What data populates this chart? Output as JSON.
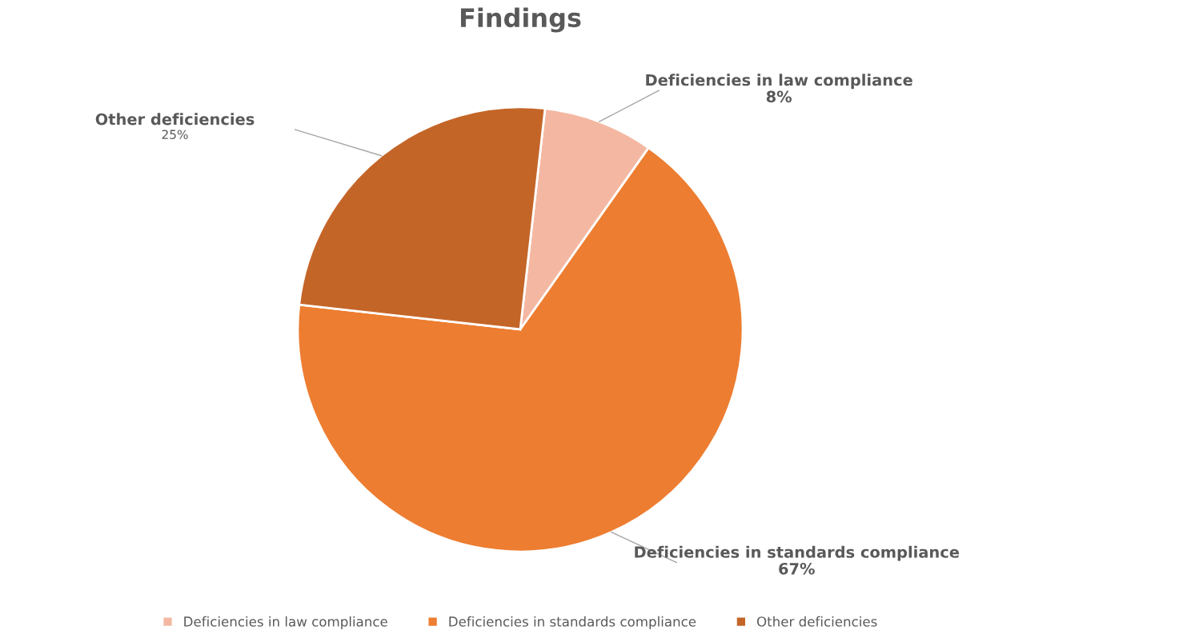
{
  "chart_data": {
    "type": "pie",
    "title": "Findings",
    "categories": [
      "Deficiencies in law compliance",
      "Deficiencies in standards compliance",
      "Other deficiencies"
    ],
    "values": [
      8,
      67,
      25
    ],
    "colors": [
      "#f4b8a2",
      "#ed7d31",
      "#c46528"
    ],
    "value_labels": [
      "8%",
      "67%",
      "25%"
    ],
    "legend": "bottom"
  }
}
